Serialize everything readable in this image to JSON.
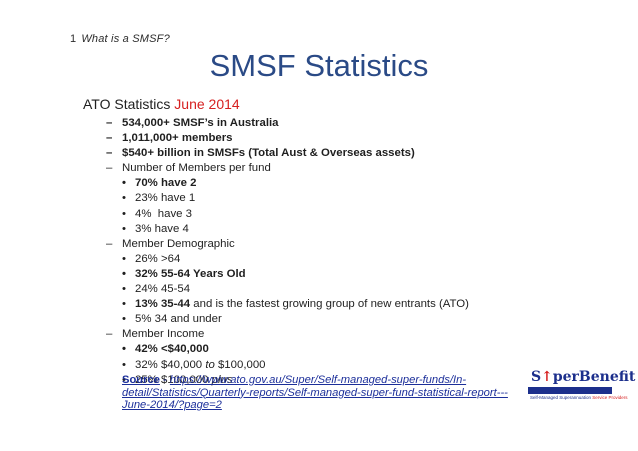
{
  "section": {
    "number": "1",
    "title": "What is a SMSF?"
  },
  "slide_title": "SMSF Statistics",
  "heading": {
    "prefix": "ATO Statistics ",
    "accent": "June 2014"
  },
  "items": {
    "i1": "534,000+ SMSF’s in Australia",
    "i2": "1,011,000+ members",
    "i3": "$540+ billion in SMSFs (Total Aust & Overseas assets)",
    "members_per_fund": {
      "label": "Number of Members per fund",
      "b1": "70% have 2",
      "b2": "23% have 1",
      "b3": "4%  have 3",
      "b4": "3% have 4"
    },
    "demographic": {
      "label": "Member Demographic",
      "b1": "26% >64",
      "b2": "32% 55-64 Years Old",
      "b3": "24% 45-54",
      "b4_bold": "13% 35-44",
      "b4_rest": " and is the fastest growing group of new entrants (ATO)",
      "b5": "5% 34 and under"
    },
    "income": {
      "label": "Member Income",
      "b1": "42% <$40,000",
      "b2_pre": "32% $40,000 ",
      "b2_it": "to",
      "b2_post": " $100,000",
      "b3_pre": "25% $100,000 ",
      "b3_it": "plus"
    }
  },
  "source": {
    "label": "Source",
    "sep": " - ",
    "url_line1": "https://www.ato.gov.au/Super/Self-managed-super-funds/In-",
    "url_line2": "detail/Statistics/Quarterly-reports/Self-managed-super-fund-statistical-report---",
    "url_line3": "June-2014/?page=2"
  },
  "logo": {
    "part1": "S",
    "part2": "perBenefit",
    "tag_pre": "Self-Managed Superannuation ",
    "tag_accent": "Service Providers"
  },
  "colors": {
    "title": "#2a4a86",
    "accent": "#d62020",
    "link": "#1c2f9a",
    "brand": "#1c2f8c"
  }
}
